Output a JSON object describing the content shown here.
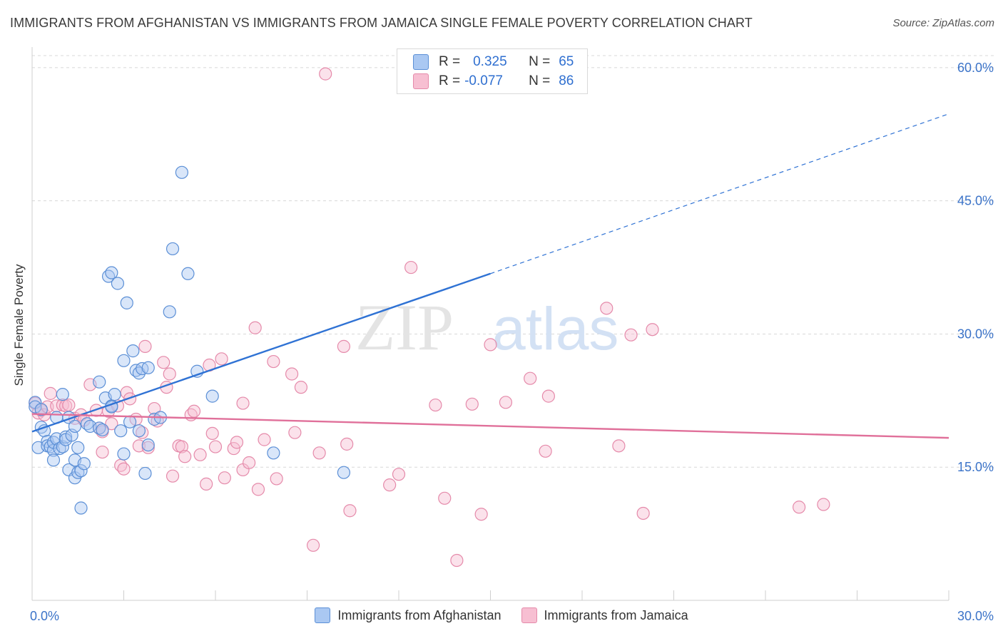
{
  "title": "IMMIGRANTS FROM AFGHANISTAN VS IMMIGRANTS FROM JAMAICA SINGLE FEMALE POVERTY CORRELATION CHART",
  "source": "Source: ZipAtlas.com",
  "watermark": {
    "zip": "ZIP",
    "atlas": "atlas"
  },
  "colors": {
    "afghanistan_fill": "#aac8f2",
    "afghanistan_stroke": "#5b8fd6",
    "afghanistan_line": "#2f72d4",
    "jamaica_fill": "#f7bfd2",
    "jamaica_stroke": "#e58aaa",
    "jamaica_line": "#e0709a",
    "axis_label": "#3b73c8",
    "grid": "#d8d8d8"
  },
  "stats_legend": [
    {
      "r_label": "R =",
      "r_value": "0.325",
      "n_label": "N =",
      "n_value": "65"
    },
    {
      "r_label": "R =",
      "r_value": "-0.077",
      "n_label": "N =",
      "n_value": "86"
    }
  ],
  "chart_data": {
    "type": "scatter",
    "title": "IMMIGRANTS FROM AFGHANISTAN VS IMMIGRANTS FROM JAMAICA SINGLE FEMALE POVERTY CORRELATION CHART",
    "xlabel": "",
    "ylabel": "Single Female Poverty",
    "xlim": [
      0,
      30
    ],
    "ylim": [
      0,
      62
    ],
    "x_tick_labels": [
      "0.0%",
      "30.0%"
    ],
    "y_ticks": [
      15,
      30,
      45,
      60
    ],
    "y_tick_labels": [
      "15.0%",
      "30.0%",
      "45.0%",
      "60.0%"
    ],
    "grid": true,
    "legend_position": "bottom",
    "series": [
      {
        "name": "Immigrants from Afghanistan",
        "trend": {
          "x0": 0,
          "y0": 19.0,
          "x1": 15.0,
          "y1": 36.8,
          "dash_x1": 30.0,
          "dash_y1": 54.8
        },
        "points": [
          [
            0.1,
            22.3
          ],
          [
            0.1,
            21.8
          ],
          [
            0.2,
            17.2
          ],
          [
            0.3,
            21.5
          ],
          [
            0.3,
            19.5
          ],
          [
            0.4,
            19.1
          ],
          [
            0.5,
            17.9
          ],
          [
            0.5,
            17.4
          ],
          [
            0.6,
            17.3
          ],
          [
            0.7,
            16.9
          ],
          [
            0.7,
            17.8
          ],
          [
            0.7,
            15.8
          ],
          [
            0.8,
            18.2
          ],
          [
            0.8,
            20.6
          ],
          [
            0.9,
            17.1
          ],
          [
            1.0,
            17.3
          ],
          [
            1.0,
            23.2
          ],
          [
            1.1,
            18.4
          ],
          [
            1.1,
            18.1
          ],
          [
            1.2,
            20.6
          ],
          [
            1.2,
            14.7
          ],
          [
            1.3,
            18.6
          ],
          [
            1.4,
            15.8
          ],
          [
            1.4,
            19.6
          ],
          [
            1.4,
            13.8
          ],
          [
            1.5,
            14.4
          ],
          [
            1.5,
            17.2
          ],
          [
            1.6,
            10.4
          ],
          [
            1.6,
            14.6
          ],
          [
            1.7,
            15.4
          ],
          [
            1.8,
            19.9
          ],
          [
            1.9,
            19.6
          ],
          [
            2.2,
            19.4
          ],
          [
            2.2,
            24.6
          ],
          [
            2.3,
            19.2
          ],
          [
            2.4,
            22.8
          ],
          [
            2.5,
            36.5
          ],
          [
            2.6,
            36.9
          ],
          [
            2.6,
            21.9
          ],
          [
            2.6,
            21.8
          ],
          [
            2.7,
            23.2
          ],
          [
            2.8,
            35.7
          ],
          [
            2.9,
            19.1
          ],
          [
            3.0,
            27.0
          ],
          [
            3.0,
            16.5
          ],
          [
            3.1,
            33.5
          ],
          [
            3.2,
            20.1
          ],
          [
            3.3,
            28.1
          ],
          [
            3.4,
            25.9
          ],
          [
            3.5,
            25.6
          ],
          [
            3.5,
            19.1
          ],
          [
            3.6,
            26.1
          ],
          [
            3.7,
            14.3
          ],
          [
            3.8,
            17.5
          ],
          [
            3.8,
            26.2
          ],
          [
            4.0,
            20.4
          ],
          [
            4.2,
            20.6
          ],
          [
            4.5,
            32.5
          ],
          [
            4.6,
            39.6
          ],
          [
            4.9,
            48.2
          ],
          [
            5.1,
            36.8
          ],
          [
            5.4,
            25.8
          ],
          [
            5.9,
            23.0
          ],
          [
            7.9,
            16.6
          ],
          [
            10.2,
            14.4
          ]
        ]
      },
      {
        "name": "Immigrants from Jamaica",
        "trend": {
          "x0": 0,
          "y0": 21.0,
          "x1": 30.0,
          "y1": 18.3
        },
        "points": [
          [
            0.1,
            22.2
          ],
          [
            0.2,
            21.1
          ],
          [
            0.3,
            21.4
          ],
          [
            0.4,
            20.9
          ],
          [
            0.5,
            21.8
          ],
          [
            0.6,
            23.3
          ],
          [
            0.8,
            21.9
          ],
          [
            1.0,
            22.0
          ],
          [
            1.1,
            21.9
          ],
          [
            1.2,
            22.0
          ],
          [
            1.4,
            20.5
          ],
          [
            1.6,
            20.9
          ],
          [
            1.7,
            20.3
          ],
          [
            1.9,
            24.3
          ],
          [
            2.1,
            21.4
          ],
          [
            2.2,
            19.4
          ],
          [
            2.3,
            19.0
          ],
          [
            2.3,
            16.7
          ],
          [
            2.5,
            21.3
          ],
          [
            2.6,
            19.9
          ],
          [
            2.8,
            21.9
          ],
          [
            2.9,
            15.2
          ],
          [
            3.0,
            14.8
          ],
          [
            3.1,
            23.4
          ],
          [
            3.2,
            22.7
          ],
          [
            3.4,
            20.4
          ],
          [
            3.5,
            17.4
          ],
          [
            3.6,
            18.9
          ],
          [
            3.7,
            28.6
          ],
          [
            3.8,
            17.2
          ],
          [
            4.0,
            21.6
          ],
          [
            4.1,
            20.2
          ],
          [
            4.3,
            26.8
          ],
          [
            4.4,
            24.0
          ],
          [
            4.5,
            25.5
          ],
          [
            4.6,
            14.0
          ],
          [
            4.8,
            17.4
          ],
          [
            4.9,
            17.3
          ],
          [
            5.0,
            16.2
          ],
          [
            5.2,
            20.9
          ],
          [
            5.3,
            21.3
          ],
          [
            5.5,
            16.4
          ],
          [
            5.7,
            13.1
          ],
          [
            5.8,
            26.5
          ],
          [
            5.9,
            18.8
          ],
          [
            6.0,
            17.3
          ],
          [
            6.2,
            27.2
          ],
          [
            6.3,
            13.8
          ],
          [
            6.6,
            17.1
          ],
          [
            6.7,
            17.8
          ],
          [
            6.9,
            22.2
          ],
          [
            6.9,
            14.7
          ],
          [
            7.1,
            15.5
          ],
          [
            7.3,
            30.7
          ],
          [
            7.4,
            12.5
          ],
          [
            7.6,
            18.1
          ],
          [
            7.9,
            26.9
          ],
          [
            8.0,
            13.7
          ],
          [
            8.5,
            25.5
          ],
          [
            8.6,
            18.9
          ],
          [
            8.8,
            24.0
          ],
          [
            9.2,
            6.2
          ],
          [
            9.4,
            16.6
          ],
          [
            9.6,
            59.3
          ],
          [
            10.2,
            28.6
          ],
          [
            10.3,
            17.6
          ],
          [
            10.4,
            10.1
          ],
          [
            11.7,
            13.0
          ],
          [
            12.0,
            14.2
          ],
          [
            12.4,
            37.5
          ],
          [
            13.2,
            22.0
          ],
          [
            13.5,
            11.5
          ],
          [
            13.9,
            4.5
          ],
          [
            14.4,
            22.1
          ],
          [
            14.7,
            9.7
          ],
          [
            15.0,
            28.8
          ],
          [
            15.5,
            22.3
          ],
          [
            16.3,
            25.0
          ],
          [
            16.9,
            23.0
          ],
          [
            16.8,
            16.8
          ],
          [
            18.8,
            32.9
          ],
          [
            19.2,
            17.4
          ],
          [
            19.6,
            29.9
          ],
          [
            20.0,
            9.8
          ],
          [
            20.3,
            30.5
          ],
          [
            25.1,
            10.5
          ],
          [
            25.9,
            10.8
          ]
        ]
      }
    ]
  }
}
